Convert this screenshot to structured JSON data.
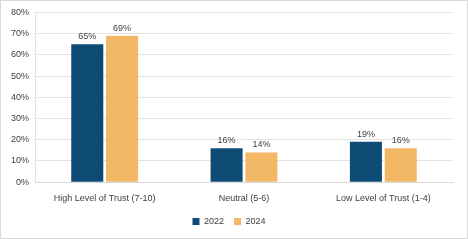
{
  "chart_data": {
    "type": "bar",
    "categories": [
      "High Level of Trust (7-10)",
      "Neutral (5-6)",
      "Low Level of Trust (1-4)"
    ],
    "series": [
      {
        "name": "2022",
        "color": "#0f4c75",
        "values": [
          65,
          16,
          19
        ],
        "value_labels": [
          "65%",
          "16%",
          "19%"
        ]
      },
      {
        "name": "2024",
        "color": "#f2b866",
        "values": [
          69,
          14,
          16
        ],
        "value_labels": [
          "69%",
          "14%",
          "16%"
        ]
      }
    ],
    "ylim": [
      0,
      80
    ],
    "yticks": [
      {
        "value": 0,
        "label": "0%"
      },
      {
        "value": 10,
        "label": "10%"
      },
      {
        "value": 20,
        "label": "20%"
      },
      {
        "value": 30,
        "label": "30%"
      },
      {
        "value": 40,
        "label": "40%"
      },
      {
        "value": 50,
        "label": "50%"
      },
      {
        "value": 60,
        "label": "60%"
      },
      {
        "value": 70,
        "label": "70%"
      },
      {
        "value": 80,
        "label": "80%"
      }
    ],
    "grid": true,
    "legend": "bottom",
    "data_labels": true
  }
}
